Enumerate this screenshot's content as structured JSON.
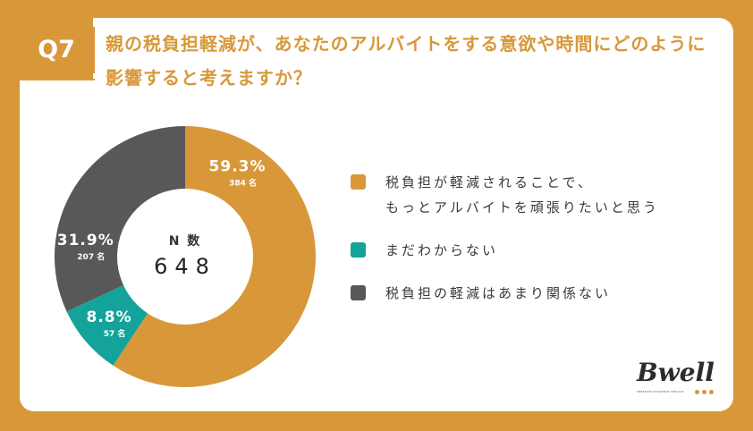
{
  "question": {
    "number": "Q7",
    "title": "親の税負担軽減が、あなたのアルバイトをする意欲や時間にどのように影響すると考えますか？"
  },
  "chart_data": {
    "type": "pie",
    "donut": true,
    "center": {
      "label": "N 数",
      "value": "648"
    },
    "slices": [
      {
        "label": "税負担が軽減されることで、\nもっとアルバイトを頑張りたいと思う",
        "percent": 59.3,
        "percent_label": "59.3%",
        "count_label": "384 名",
        "color": "#d8983a"
      },
      {
        "label": "まだわからない",
        "percent": 8.8,
        "percent_label": "8.8%",
        "count_label": "57 名",
        "color": "#14a39a"
      },
      {
        "label": "税負担の軽減はあまり関係ない",
        "percent": 31.9,
        "percent_label": "31.9%",
        "count_label": "207 名",
        "color": "#58575a"
      }
    ],
    "legend_position": "right"
  },
  "logo": {
    "text": "Bwell",
    "sub": "FREEDOM STUDENTS SERVICE"
  }
}
